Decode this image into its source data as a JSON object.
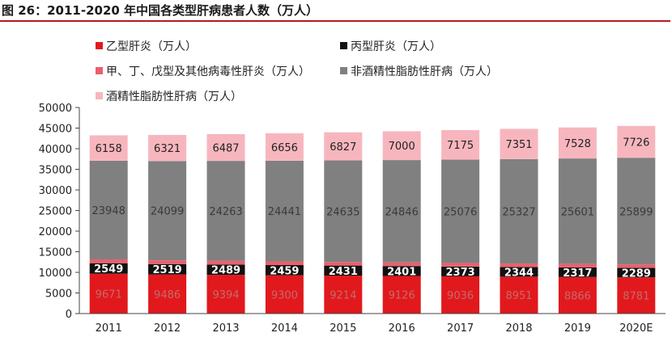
{
  "chart_data": {
    "type": "bar",
    "stacked": true,
    "title": "图 26：2011-2020 年中国各类型肝病患者人数（万人）",
    "categories": [
      "2011",
      "2012",
      "2013",
      "2014",
      "2015",
      "2016",
      "2017",
      "2018",
      "2019",
      "2020E"
    ],
    "ylim": [
      0,
      50000
    ],
    "yticks": [
      0,
      5000,
      10000,
      15000,
      20000,
      25000,
      30000,
      35000,
      40000,
      45000,
      50000
    ],
    "legend_position": "top",
    "series": [
      {
        "name": "乙型肝炎（万人）",
        "color": "#e1191d",
        "label_color": "#c56a6a",
        "label_bold": false,
        "values": [
          9671,
          9486,
          9394,
          9300,
          9214,
          9126,
          9036,
          8951,
          8866,
          8781
        ]
      },
      {
        "name": "丙型肝炎（万人）",
        "color": "#111111",
        "label_color": "#ffffff",
        "label_bold": true,
        "values": [
          2549,
          2519,
          2489,
          2459,
          2431,
          2401,
          2373,
          2344,
          2317,
          2289
        ]
      },
      {
        "name": "甲、丁、戊型及其他病毒性肝炎（万人）",
        "color": "#ec5f6d",
        "label_color": "#333333",
        "label_bold": false,
        "values": [
          920,
          904,
          894,
          885,
          877,
          868,
          859,
          850,
          842,
          833
        ]
      },
      {
        "name": "非酒精性脂肪性肝病（万人）",
        "color": "#808080",
        "label_color": "#3a3a3a",
        "label_bold": false,
        "values": [
          23948,
          24099,
          24263,
          24441,
          24635,
          24846,
          25076,
          25327,
          25601,
          25899
        ]
      },
      {
        "name": "酒精性脂肪性肝病（万人）",
        "color": "#f7b6be",
        "label_color": "#222222",
        "label_bold": false,
        "values": [
          6158,
          6321,
          6487,
          6656,
          6827,
          7000,
          7175,
          7351,
          7528,
          7726
        ]
      }
    ]
  }
}
